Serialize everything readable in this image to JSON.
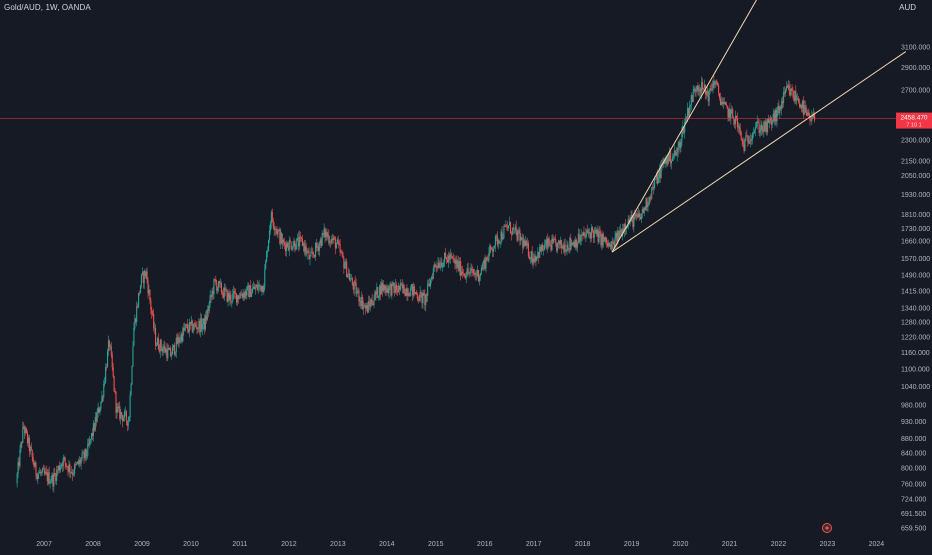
{
  "symbol_title": "Gold/AUD, 1W, OANDA",
  "currency_label": "AUD",
  "last_price_label": "2458.470",
  "countdown_label": "7 10 1",
  "colors": {
    "background": "#151a24",
    "up": "#26a69a",
    "down": "#ef5350",
    "price_line": "#f23645",
    "trendline": "#f5d9b0",
    "axis_text": "#b2b5be"
  },
  "chart_data": {
    "type": "candlestick",
    "title": "Gold/AUD, 1W, OANDA",
    "scale": "log",
    "ylim": [
      640,
      3600
    ],
    "xlim": [
      2006.1,
      2024.4
    ],
    "y_ticks": [
      "3100.000",
      "2900.000",
      "2700.000",
      "2450.000",
      "2300.000",
      "2150.000",
      "2050.000",
      "1930.000",
      "1810.000",
      "1730.000",
      "1660.000",
      "1570.000",
      "1490.000",
      "1415.000",
      "1340.000",
      "1280.000",
      "1220.000",
      "1160.000",
      "1100.000",
      "1040.000",
      "980.000",
      "930.000",
      "880.000",
      "840.000",
      "800.000",
      "760.000",
      "724.000",
      "691.500",
      "659.500"
    ],
    "x_ticks": [
      "2007",
      "2008",
      "2009",
      "2010",
      "2011",
      "2012",
      "2013",
      "2014",
      "2015",
      "2016",
      "2017",
      "2018",
      "2019",
      "2020",
      "2021",
      "2022",
      "2023",
      "2024"
    ],
    "last_price": 2458.47,
    "anchors": [
      [
        2006.45,
        760
      ],
      [
        2006.6,
        915
      ],
      [
        2006.85,
        790
      ],
      [
        2007.2,
        770
      ],
      [
        2007.4,
        820
      ],
      [
        2007.6,
        790
      ],
      [
        2007.9,
        840
      ],
      [
        2008.2,
        1000
      ],
      [
        2008.35,
        1200
      ],
      [
        2008.5,
        960
      ],
      [
        2008.75,
        930
      ],
      [
        2008.85,
        1250
      ],
      [
        2009.0,
        1460
      ],
      [
        2009.1,
        1500
      ],
      [
        2009.3,
        1200
      ],
      [
        2009.6,
        1150
      ],
      [
        2009.9,
        1250
      ],
      [
        2010.3,
        1270
      ],
      [
        2010.5,
        1450
      ],
      [
        2010.8,
        1380
      ],
      [
        2011.2,
        1410
      ],
      [
        2011.5,
        1440
      ],
      [
        2011.65,
        1800
      ],
      [
        2011.9,
        1640
      ],
      [
        2012.3,
        1650
      ],
      [
        2012.45,
        1560
      ],
      [
        2012.75,
        1700
      ],
      [
        2013.0,
        1640
      ],
      [
        2013.3,
        1450
      ],
      [
        2013.6,
        1330
      ],
      [
        2013.9,
        1430
      ],
      [
        2014.2,
        1420
      ],
      [
        2014.5,
        1420
      ],
      [
        2014.8,
        1370
      ],
      [
        2015.0,
        1540
      ],
      [
        2015.3,
        1570
      ],
      [
        2015.6,
        1500
      ],
      [
        2015.9,
        1490
      ],
      [
        2016.2,
        1640
      ],
      [
        2016.5,
        1740
      ],
      [
        2016.75,
        1670
      ],
      [
        2017.0,
        1570
      ],
      [
        2017.3,
        1640
      ],
      [
        2017.6,
        1630
      ],
      [
        2017.9,
        1660
      ],
      [
        2018.2,
        1710
      ],
      [
        2018.45,
        1660
      ],
      [
        2018.6,
        1620
      ],
      [
        2018.9,
        1760
      ],
      [
        2019.2,
        1790
      ],
      [
        2019.5,
        2000
      ],
      [
        2019.7,
        2150
      ],
      [
        2019.95,
        2200
      ],
      [
        2020.15,
        2500
      ],
      [
        2020.35,
        2750
      ],
      [
        2020.6,
        2650
      ],
      [
        2020.7,
        2780
      ],
      [
        2020.9,
        2550
      ],
      [
        2021.15,
        2450
      ],
      [
        2021.3,
        2250
      ],
      [
        2021.55,
        2400
      ],
      [
        2021.75,
        2380
      ],
      [
        2022.0,
        2500
      ],
      [
        2022.2,
        2700
      ],
      [
        2022.45,
        2600
      ],
      [
        2022.65,
        2440
      ],
      [
        2022.75,
        2458
      ]
    ],
    "trendlines": [
      {
        "from": [
          2018.6,
          1600
        ],
        "to": [
          2024.6,
          3050
        ]
      },
      {
        "from": [
          2018.6,
          1600
        ],
        "to": [
          2021.55,
          3600
        ]
      }
    ]
  }
}
